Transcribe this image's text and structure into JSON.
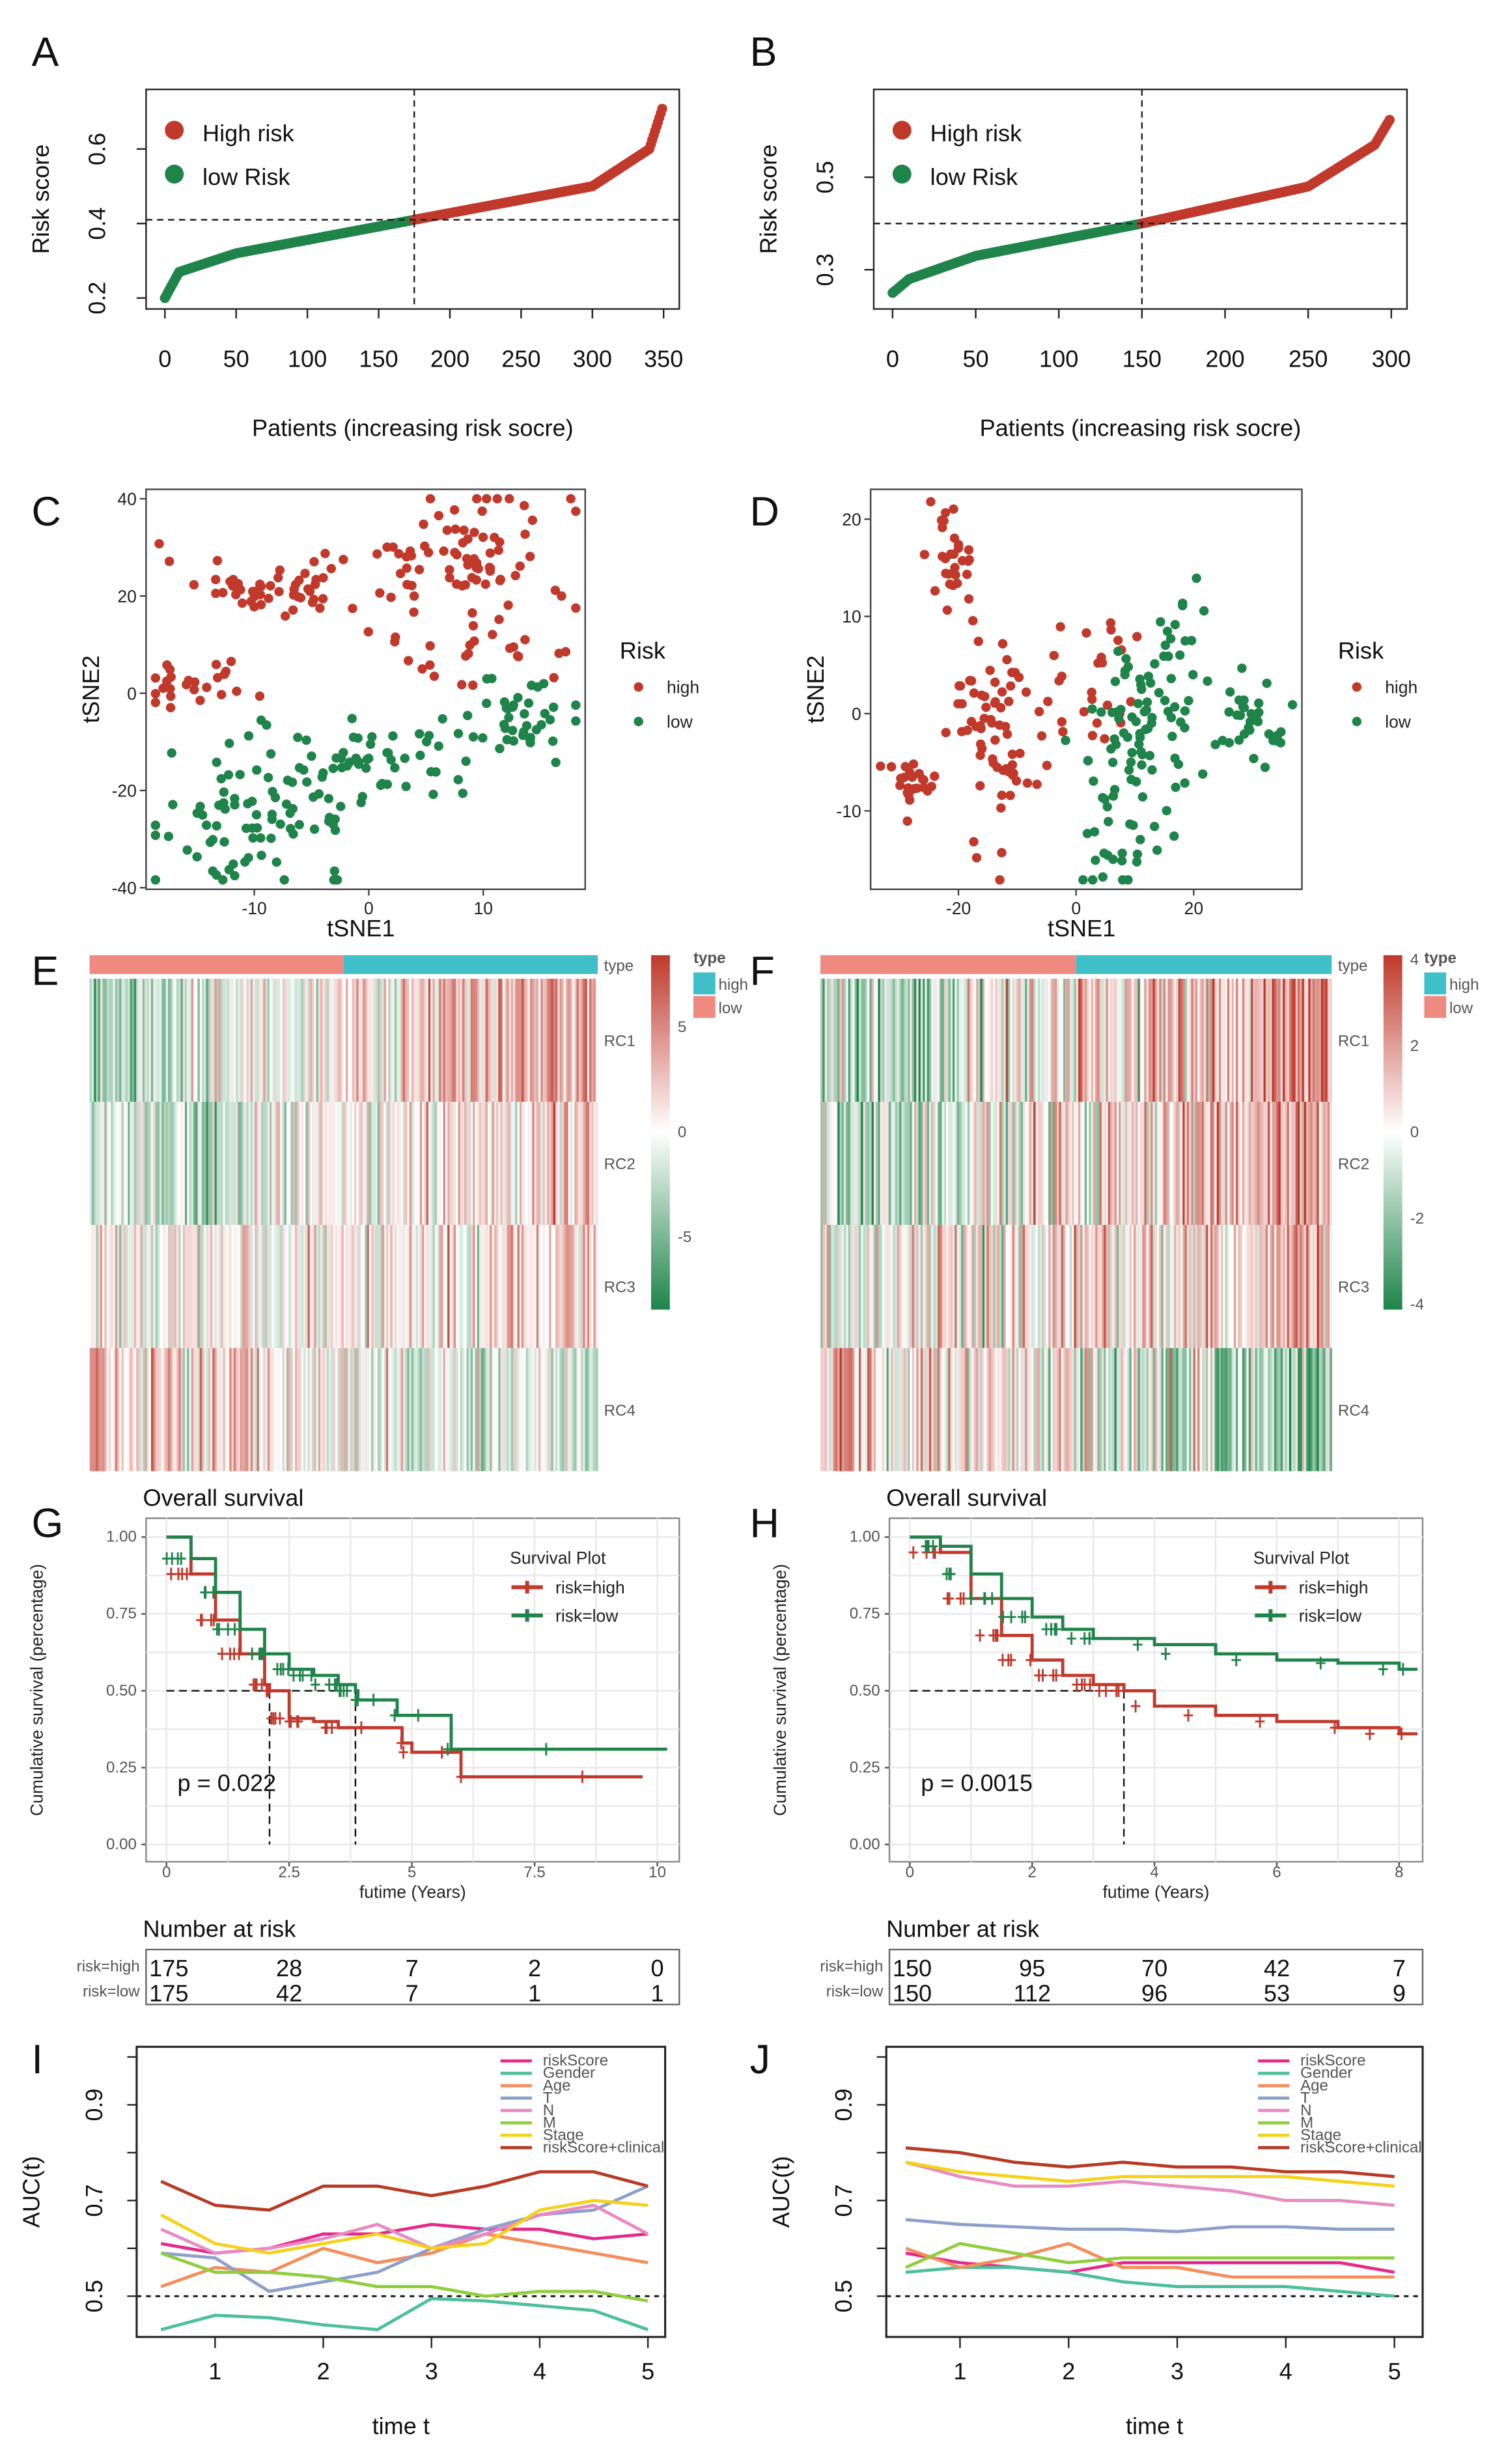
{
  "panel_letters": [
    "A",
    "B",
    "C",
    "D",
    "E",
    "F",
    "G",
    "H",
    "I",
    "J"
  ],
  "chart_data": [
    {
      "panel": "A",
      "type": "scatter",
      "xlabel": "Patients (increasing risk socre)",
      "ylabel": "Risk score",
      "x_ticks": [
        0,
        50,
        100,
        150,
        200,
        250,
        300,
        350
      ],
      "y_ticks": [
        0.2,
        0.4,
        0.6
      ],
      "n": 350,
      "cutoff_index": 175,
      "cutoff_score": 0.41,
      "curve_knots": [
        [
          0,
          0.2
        ],
        [
          10,
          0.27
        ],
        [
          50,
          0.32
        ],
        [
          175,
          0.41
        ],
        [
          300,
          0.5
        ],
        [
          340,
          0.6
        ],
        [
          350,
          0.72
        ]
      ],
      "legend": [
        {
          "label": "High risk",
          "color": "#c0392b"
        },
        {
          "label": "low Risk",
          "color": "#1e8449"
        }
      ]
    },
    {
      "panel": "B",
      "type": "scatter",
      "xlabel": "Patients (increasing risk socre)",
      "ylabel": "Risk score",
      "x_ticks": [
        0,
        50,
        100,
        150,
        200,
        250,
        300
      ],
      "y_ticks": [
        0.3,
        0.5
      ],
      "n": 300,
      "cutoff_index": 150,
      "cutoff_score": 0.4,
      "curve_knots": [
        [
          0,
          0.25
        ],
        [
          10,
          0.28
        ],
        [
          50,
          0.33
        ],
        [
          150,
          0.4
        ],
        [
          250,
          0.48
        ],
        [
          290,
          0.57
        ],
        [
          300,
          0.63
        ]
      ],
      "legend": [
        {
          "label": "High risk",
          "color": "#c0392b"
        },
        {
          "label": "low Risk",
          "color": "#1e8449"
        }
      ]
    },
    {
      "panel": "C",
      "type": "scatter",
      "xlabel": "tSNE1",
      "ylabel": "tSNE2",
      "x_ticks": [
        -10,
        0,
        10
      ],
      "y_ticks": [
        -40,
        -20,
        0,
        20,
        40
      ],
      "legend_title": "Risk",
      "legend": [
        {
          "label": "high",
          "color": "#c0392b"
        },
        {
          "label": "low",
          "color": "#1e8449"
        }
      ],
      "clusters": [
        {
          "g": "high",
          "x": -8,
          "y": 22,
          "sx": 5,
          "sy": 3,
          "n": 55
        },
        {
          "g": "high",
          "x": 8,
          "y": 28,
          "sx": 5,
          "sy": 7,
          "n": 70
        },
        {
          "g": "high",
          "x": -15,
          "y": 2,
          "sx": 3,
          "sy": 3,
          "n": 25
        },
        {
          "g": "high",
          "x": 10,
          "y": 8,
          "sx": 5,
          "sy": 4,
          "n": 25
        },
        {
          "g": "low",
          "x": -10,
          "y": -25,
          "sx": 4,
          "sy": 6,
          "n": 70
        },
        {
          "g": "low",
          "x": 0,
          "y": -15,
          "sx": 5,
          "sy": 5,
          "n": 60
        },
        {
          "g": "low",
          "x": 13,
          "y": -5,
          "sx": 3,
          "sy": 4,
          "n": 40
        }
      ]
    },
    {
      "panel": "D",
      "type": "scatter",
      "xlabel": "tSNE1",
      "ylabel": "tSNE2",
      "x_ticks": [
        -20,
        0,
        20
      ],
      "y_ticks": [
        -10,
        0,
        10,
        20
      ],
      "legend_title": "Risk",
      "legend": [
        {
          "label": "high",
          "color": "#c0392b"
        },
        {
          "label": "low",
          "color": "#1e8449"
        }
      ],
      "clusters": [
        {
          "g": "high",
          "x": -21,
          "y": 15,
          "sx": 2,
          "sy": 3,
          "n": 30
        },
        {
          "g": "high",
          "x": -28,
          "y": -7,
          "sx": 3,
          "sy": 1,
          "n": 25
        },
        {
          "g": "high",
          "x": -13,
          "y": -2,
          "sx": 4,
          "sy": 6,
          "n": 70
        },
        {
          "g": "high",
          "x": 3,
          "y": 2,
          "sx": 4,
          "sy": 5,
          "n": 25
        },
        {
          "g": "low",
          "x": 8,
          "y": -3,
          "sx": 4,
          "sy": 6,
          "n": 55
        },
        {
          "g": "low",
          "x": 17,
          "y": 2,
          "sx": 4,
          "sy": 6,
          "n": 45
        },
        {
          "g": "low",
          "x": 31,
          "y": -1,
          "sx": 3,
          "sy": 2,
          "n": 30
        },
        {
          "g": "low",
          "x": 6,
          "y": -14,
          "sx": 3,
          "sy": 2,
          "n": 15
        }
      ]
    },
    {
      "panel": "E",
      "type": "heatmap",
      "rows": [
        "RC1",
        "RC2",
        "RC3",
        "RC4"
      ],
      "row_trends": [
        [
          -2,
          3
        ],
        [
          -2,
          2
        ],
        [
          -0.3,
          1
        ],
        [
          2,
          -1.5
        ]
      ],
      "scale_ticks": [
        5,
        0,
        -5
      ],
      "type_label": "type",
      "type_legend": [
        {
          "label": "high",
          "color": "#3fbfc8"
        },
        {
          "label": "low",
          "color": "#ef8a80"
        }
      ],
      "type_order": [
        "low",
        "high"
      ]
    },
    {
      "panel": "F",
      "type": "heatmap",
      "rows": [
        "RC1",
        "RC2",
        "RC3",
        "RC4"
      ],
      "row_trends": [
        [
          -2,
          3
        ],
        [
          -1.5,
          2.5
        ],
        [
          -0.5,
          1.5
        ],
        [
          2,
          -2
        ]
      ],
      "scale_ticks": [
        4,
        2,
        0,
        -2,
        -4
      ],
      "type_label": "type",
      "type_legend": [
        {
          "label": "high",
          "color": "#3fbfc8"
        },
        {
          "label": "low",
          "color": "#ef8a80"
        }
      ],
      "type_order": [
        "low",
        "high"
      ]
    },
    {
      "panel": "G",
      "type": "line",
      "title": "Overall survival",
      "xlabel": "futime (Years)",
      "ylabel": "Cumulative survival (percentage)",
      "x_ticks": [
        0,
        2.5,
        5,
        7.5,
        10
      ],
      "y_ticks": [
        "0.00",
        "0.25",
        "0.50",
        "0.75",
        "1.00"
      ],
      "xlim": [
        0,
        10.3
      ],
      "pvalue": "p = 0.022",
      "legend_title": "Survival Plot",
      "medians": [
        2.1,
        3.85
      ],
      "series": [
        {
          "name": "risk=high",
          "color": "#c0392b",
          "points": [
            [
              0,
              1
            ],
            [
              0.5,
              0.88
            ],
            [
              1,
              0.73
            ],
            [
              1.5,
              0.62
            ],
            [
              2,
              0.52
            ],
            [
              2.1,
              0.5
            ],
            [
              2.5,
              0.41
            ],
            [
              3,
              0.4
            ],
            [
              3.5,
              0.38
            ],
            [
              4.7,
              0.38
            ],
            [
              4.8,
              0.33
            ],
            [
              5,
              0.3
            ],
            [
              6,
              0.3
            ],
            [
              6,
              0.22
            ],
            [
              9.7,
              0.22
            ]
          ]
        },
        {
          "name": "risk=low",
          "color": "#1e8449",
          "points": [
            [
              0,
              1
            ],
            [
              0.5,
              0.93
            ],
            [
              1,
              0.82
            ],
            [
              1.5,
              0.7
            ],
            [
              2,
              0.62
            ],
            [
              2.5,
              0.57
            ],
            [
              3,
              0.55
            ],
            [
              3.5,
              0.52
            ],
            [
              3.85,
              0.5
            ],
            [
              3.9,
              0.47
            ],
            [
              4.6,
              0.47
            ],
            [
              4.7,
              0.42
            ],
            [
              5.7,
              0.42
            ],
            [
              5.8,
              0.31
            ],
            [
              10.2,
              0.31
            ]
          ]
        }
      ],
      "risk_table": {
        "title": "Number at risk",
        "rows": [
          {
            "label": "risk=high",
            "values": [
              "175",
              "28",
              "7",
              "2",
              "0"
            ]
          },
          {
            "label": "risk=low",
            "values": [
              "175",
              "42",
              "7",
              "1",
              "1"
            ]
          }
        ]
      }
    },
    {
      "panel": "H",
      "type": "line",
      "title": "Overall survival",
      "xlabel": "futime (Years)",
      "ylabel": "Cumulative survival (percentage)",
      "x_ticks": [
        0,
        2,
        4,
        6,
        8
      ],
      "y_ticks": [
        "0.00",
        "0.25",
        "0.50",
        "0.75",
        "1.00"
      ],
      "xlim": [
        0,
        8.3
      ],
      "pvalue": "p = 0.0015",
      "legend_title": "Survival Plot",
      "medians": [
        3.5
      ],
      "series": [
        {
          "name": "risk=high",
          "color": "#c0392b",
          "points": [
            [
              0,
              1
            ],
            [
              0.5,
              0.95
            ],
            [
              1,
              0.8
            ],
            [
              1.5,
              0.68
            ],
            [
              2,
              0.6
            ],
            [
              2.5,
              0.55
            ],
            [
              3,
              0.52
            ],
            [
              3.5,
              0.5
            ],
            [
              4,
              0.45
            ],
            [
              5,
              0.42
            ],
            [
              6,
              0.4
            ],
            [
              7,
              0.38
            ],
            [
              8,
              0.36
            ],
            [
              8.3,
              0.36
            ]
          ]
        },
        {
          "name": "risk=low",
          "color": "#1e8449",
          "points": [
            [
              0,
              1
            ],
            [
              0.5,
              0.97
            ],
            [
              1,
              0.88
            ],
            [
              1.5,
              0.8
            ],
            [
              2,
              0.74
            ],
            [
              2.5,
              0.7
            ],
            [
              3,
              0.67
            ],
            [
              4,
              0.65
            ],
            [
              5,
              0.62
            ],
            [
              6,
              0.6
            ],
            [
              7,
              0.59
            ],
            [
              8,
              0.57
            ],
            [
              8.3,
              0.57
            ]
          ]
        }
      ],
      "risk_table": {
        "title": "Number at risk",
        "rows": [
          {
            "label": "risk=high",
            "values": [
              "150",
              "95",
              "70",
              "42",
              "7"
            ]
          },
          {
            "label": "risk=low",
            "values": [
              "150",
              "112",
              "96",
              "53",
              "9"
            ]
          }
        ]
      }
    },
    {
      "panel": "I",
      "type": "line",
      "xlabel": "time t",
      "ylabel": "AUC(t)",
      "x_ticks": [
        1,
        2,
        3,
        4,
        5
      ],
      "y_ticks": [
        0.5,
        0.7,
        0.9
      ],
      "ylim": [
        0.43,
        1.03
      ],
      "x": [
        0.5,
        1,
        1.5,
        2,
        2.5,
        3,
        3.5,
        4,
        4.5,
        5
      ],
      "series": [
        {
          "name": "riskScore",
          "color": "#e7298a",
          "values": [
            0.61,
            0.59,
            0.6,
            0.63,
            0.63,
            0.65,
            0.64,
            0.64,
            0.62,
            0.63
          ]
        },
        {
          "name": "Gender",
          "color": "#4cbf9c",
          "values": [
            0.43,
            0.46,
            0.455,
            0.44,
            0.43,
            0.495,
            0.49,
            0.48,
            0.47,
            0.43
          ]
        },
        {
          "name": "Age",
          "color": "#f58d5a",
          "values": [
            0.52,
            0.56,
            0.55,
            0.6,
            0.57,
            0.59,
            0.63,
            0.61,
            0.59,
            0.57
          ]
        },
        {
          "name": "T",
          "color": "#8da0cb",
          "values": [
            0.59,
            0.58,
            0.51,
            0.53,
            0.55,
            0.6,
            0.64,
            0.67,
            0.68,
            0.73
          ]
        },
        {
          "name": "N",
          "color": "#e78ac3",
          "values": [
            0.64,
            0.59,
            0.6,
            0.62,
            0.65,
            0.6,
            0.63,
            0.67,
            0.69,
            0.63
          ]
        },
        {
          "name": "M",
          "color": "#8fcf3c",
          "values": [
            0.59,
            0.55,
            0.55,
            0.54,
            0.52,
            0.52,
            0.5,
            0.51,
            0.51,
            0.49
          ]
        },
        {
          "name": "Stage",
          "color": "#f5d218",
          "values": [
            0.67,
            0.61,
            0.59,
            0.61,
            0.63,
            0.6,
            0.61,
            0.68,
            0.7,
            0.69
          ]
        },
        {
          "name": "riskScore+clinical",
          "color": "#b83a24",
          "values": [
            0.74,
            0.69,
            0.68,
            0.73,
            0.73,
            0.71,
            0.73,
            0.76,
            0.76,
            0.73
          ]
        }
      ]
    },
    {
      "panel": "J",
      "type": "line",
      "xlabel": "time t",
      "ylabel": "AUC(t)",
      "x_ticks": [
        1,
        2,
        3,
        4,
        5
      ],
      "y_ticks": [
        0.5,
        0.7,
        0.9
      ],
      "ylim": [
        0.43,
        1.03
      ],
      "x": [
        0.5,
        1,
        1.5,
        2,
        2.5,
        3,
        3.5,
        4,
        4.5,
        5
      ],
      "series": [
        {
          "name": "riskScore",
          "color": "#e7298a",
          "values": [
            0.59,
            0.57,
            0.56,
            0.55,
            0.57,
            0.57,
            0.57,
            0.57,
            0.57,
            0.55
          ]
        },
        {
          "name": "Gender",
          "color": "#4cbf9c",
          "values": [
            0.55,
            0.56,
            0.56,
            0.55,
            0.53,
            0.52,
            0.52,
            0.52,
            0.51,
            0.5
          ]
        },
        {
          "name": "Age",
          "color": "#f58d5a",
          "values": [
            0.6,
            0.56,
            0.58,
            0.61,
            0.56,
            0.56,
            0.54,
            0.54,
            0.54,
            0.54
          ]
        },
        {
          "name": "T",
          "color": "#8da0cb",
          "values": [
            0.66,
            0.65,
            0.645,
            0.64,
            0.64,
            0.635,
            0.645,
            0.645,
            0.64,
            0.64
          ]
        },
        {
          "name": "N",
          "color": "#e78ac3",
          "values": [
            0.78,
            0.75,
            0.73,
            0.73,
            0.74,
            0.73,
            0.72,
            0.7,
            0.7,
            0.69
          ]
        },
        {
          "name": "M",
          "color": "#8fcf3c",
          "values": [
            0.56,
            0.61,
            0.59,
            0.57,
            0.58,
            0.58,
            0.58,
            0.58,
            0.58,
            0.58
          ]
        },
        {
          "name": "Stage",
          "color": "#f5d218",
          "values": [
            0.78,
            0.76,
            0.75,
            0.74,
            0.75,
            0.75,
            0.75,
            0.75,
            0.74,
            0.73
          ]
        },
        {
          "name": "riskScore+clinical",
          "color": "#b83a24",
          "values": [
            0.81,
            0.8,
            0.78,
            0.77,
            0.78,
            0.77,
            0.77,
            0.76,
            0.76,
            0.75
          ]
        }
      ]
    }
  ]
}
